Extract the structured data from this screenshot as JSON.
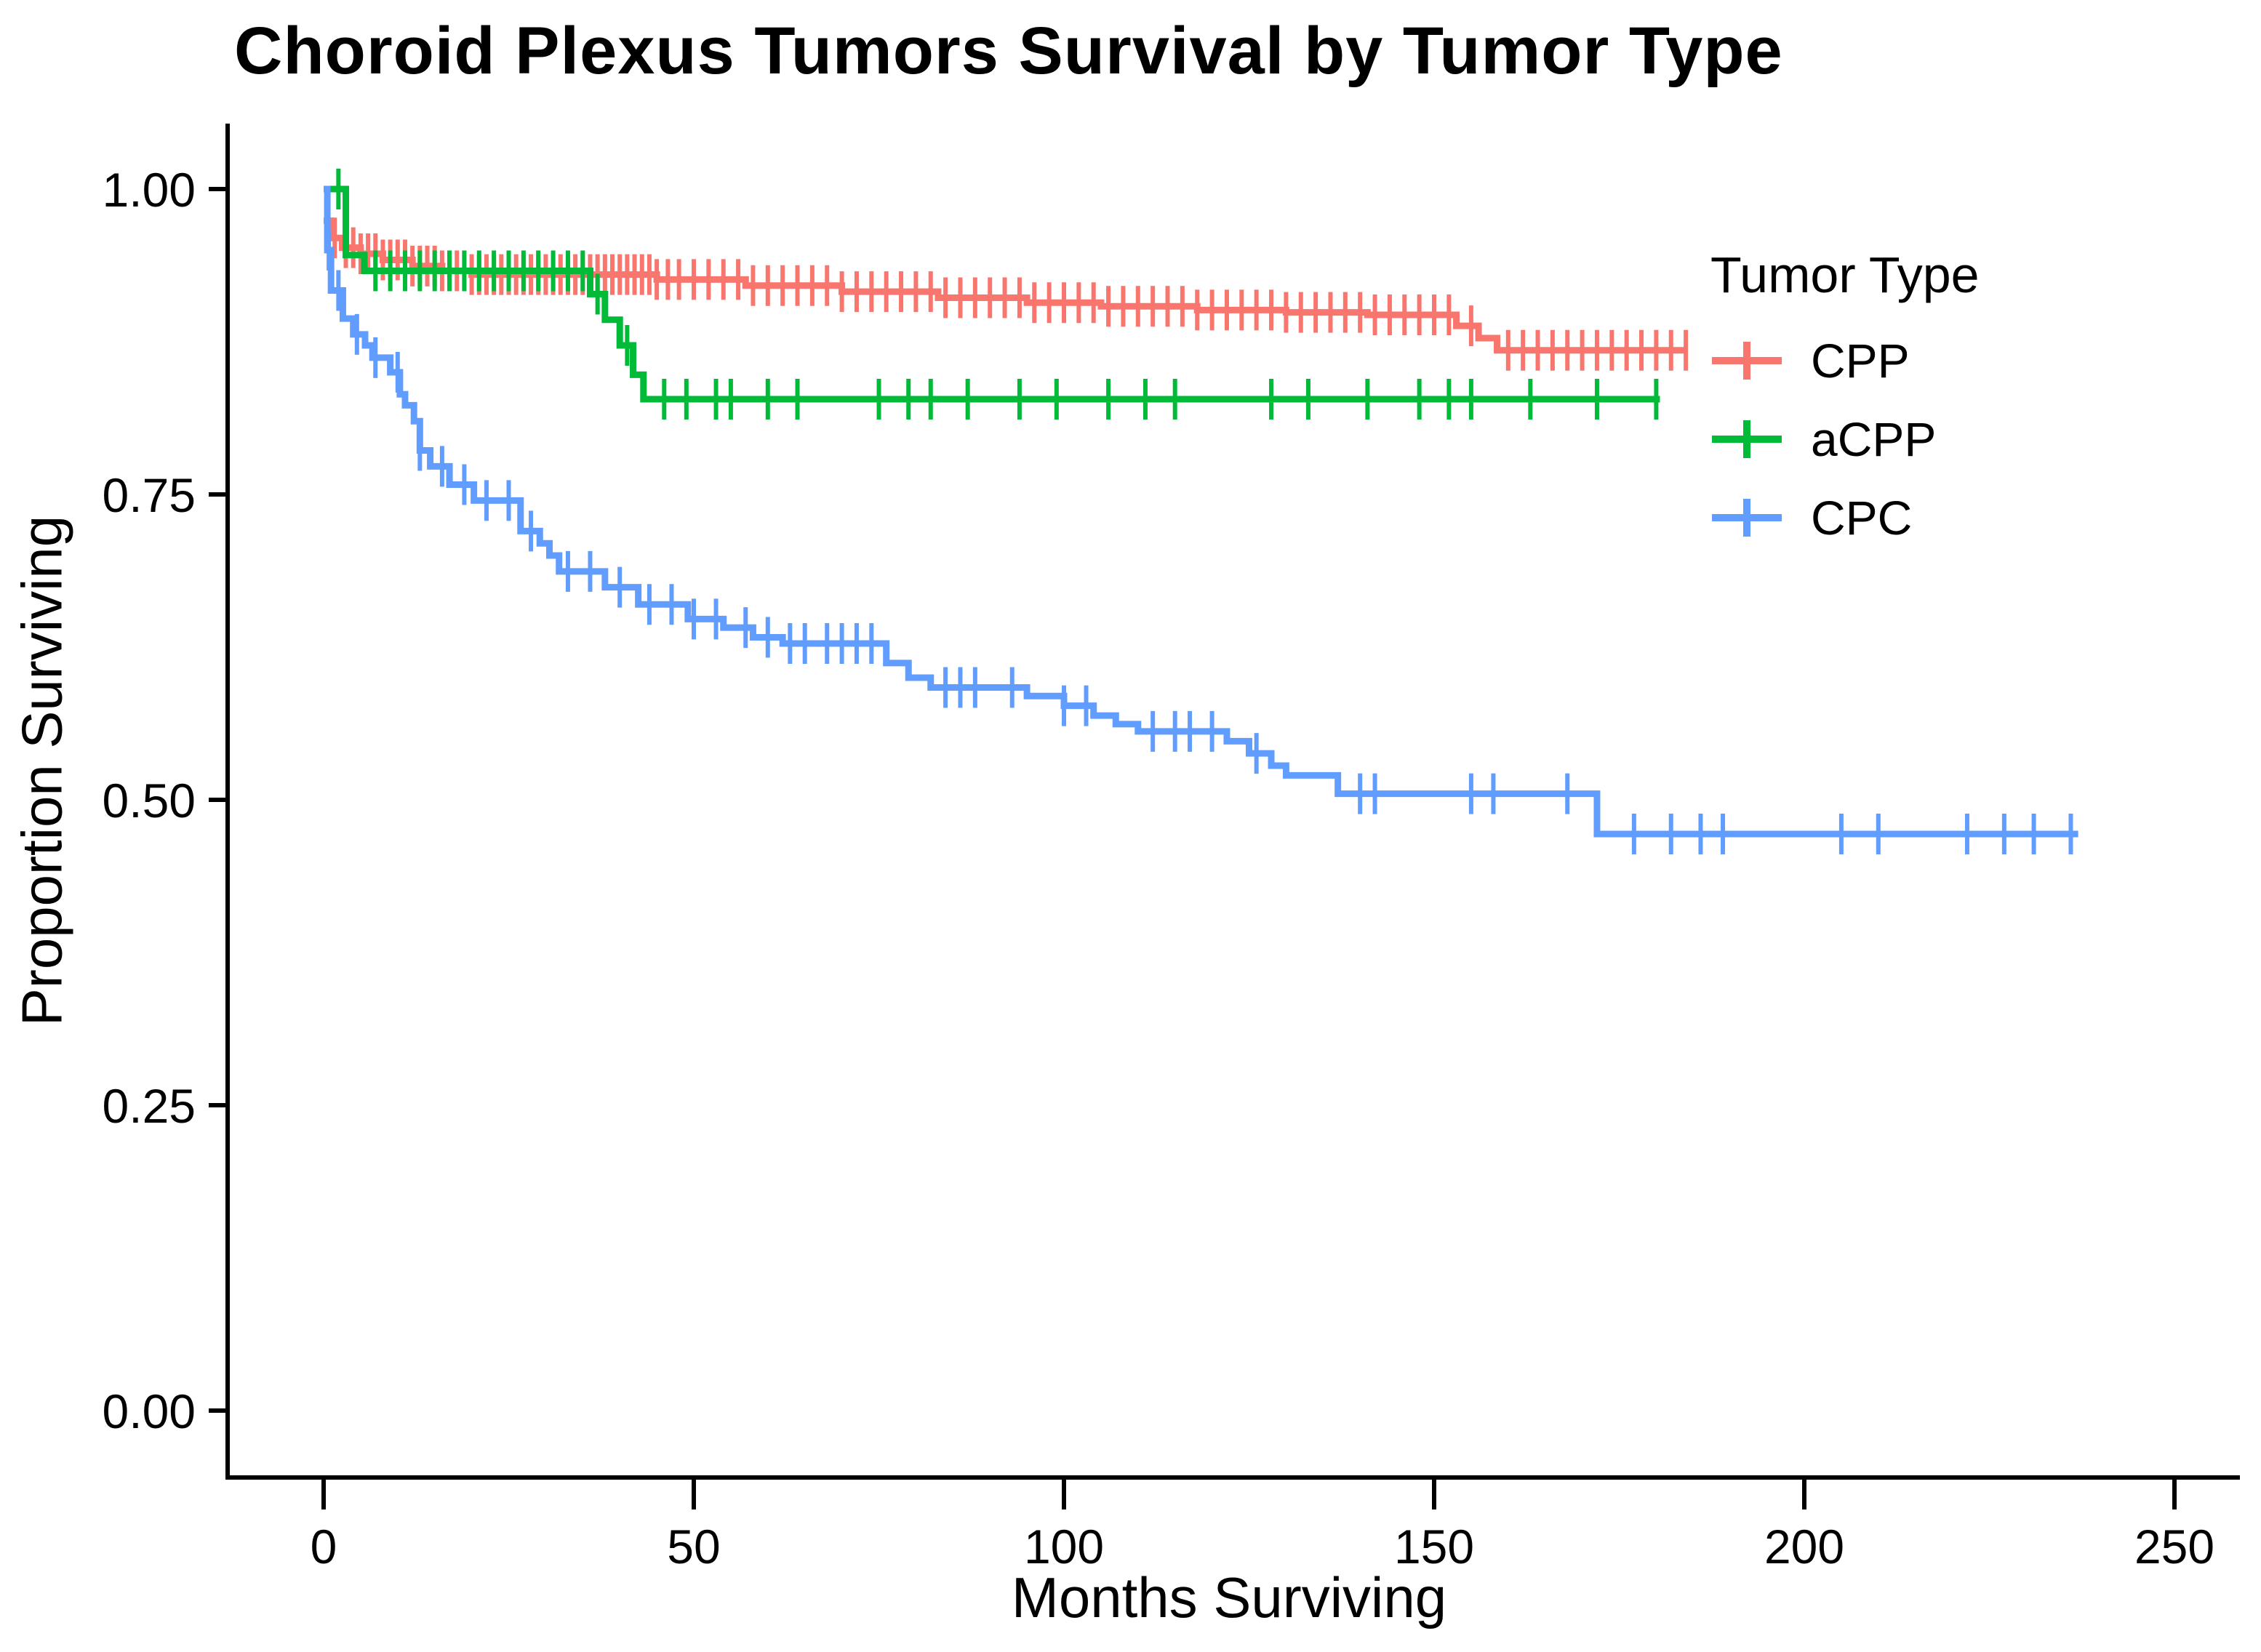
{
  "chart_data": {
    "type": "line",
    "subtype": "kaplan-meier-step-curves",
    "title": "Choroid Plexus Tumors Survival by Tumor Type",
    "xlabel": "Months Surviving",
    "ylabel": "Proportion Surviving",
    "legend_title": "Tumor Type",
    "legend_position": "right",
    "grid": false,
    "background_color": "#ffffff",
    "axis_color": "#000000",
    "xlim": [
      0,
      250
    ],
    "ylim": [
      0.0,
      1.0
    ],
    "x_ticks": [
      {
        "value": 0,
        "label": "0"
      },
      {
        "value": 50,
        "label": "50"
      },
      {
        "value": 100,
        "label": "100"
      },
      {
        "value": 150,
        "label": "150"
      },
      {
        "value": 200,
        "label": "200"
      },
      {
        "value": 250,
        "label": "250"
      }
    ],
    "y_ticks": [
      {
        "value": 0.0,
        "label": "0.00"
      },
      {
        "value": 0.25,
        "label": "0.25"
      },
      {
        "value": 0.5,
        "label": "0.50"
      },
      {
        "value": 0.75,
        "label": "0.75"
      },
      {
        "value": 1.0,
        "label": "1.00"
      }
    ],
    "series": [
      {
        "name": "CPP",
        "color": "#F8766D",
        "end_time": 184,
        "steps": [
          [
            0,
            0.974
          ],
          [
            1,
            0.96
          ],
          [
            2.5,
            0.952
          ],
          [
            5,
            0.947
          ],
          [
            8,
            0.942
          ],
          [
            12,
            0.937
          ],
          [
            16,
            0.933
          ],
          [
            20,
            0.93
          ],
          [
            45,
            0.926
          ],
          [
            57,
            0.921
          ],
          [
            70,
            0.916
          ],
          [
            83,
            0.911
          ],
          [
            95,
            0.907
          ],
          [
            105,
            0.904
          ],
          [
            118,
            0.901
          ],
          [
            130,
            0.899
          ],
          [
            141,
            0.897
          ],
          [
            153,
            0.888
          ],
          [
            156,
            0.878
          ],
          [
            158.5,
            0.868
          ]
        ],
        "censor_times": [
          1.5,
          3,
          4,
          5,
          6,
          7,
          8,
          9,
          10,
          11,
          12,
          13,
          14,
          15,
          16,
          17,
          18,
          19,
          20,
          21,
          22,
          23,
          24,
          25,
          26,
          27,
          28,
          29,
          30,
          31,
          32,
          33,
          34,
          35,
          36,
          37,
          38,
          39,
          40,
          41,
          42,
          43,
          44,
          45,
          46.5,
          48,
          50,
          52,
          54,
          56,
          58,
          60,
          62,
          64,
          66,
          68,
          70,
          72,
          74,
          76,
          78,
          80,
          82,
          84,
          86,
          88,
          90,
          92,
          94,
          96,
          98,
          100,
          102,
          104,
          106,
          108,
          110,
          112,
          114,
          116,
          118,
          120,
          122,
          124,
          126,
          128,
          130,
          132,
          134,
          136,
          138,
          140,
          142,
          144,
          146,
          148,
          150,
          152,
          155,
          160,
          162,
          164,
          166,
          168,
          170,
          172,
          174,
          176,
          178,
          180,
          182,
          184
        ]
      },
      {
        "name": "aCPP",
        "color": "#00BA38",
        "end_time": 180.5,
        "steps": [
          [
            0,
            1.0
          ],
          [
            3,
            0.946
          ],
          [
            5.5,
            0.933
          ],
          [
            36,
            0.914
          ],
          [
            38,
            0.893
          ],
          [
            40,
            0.872
          ],
          [
            41.8,
            0.848
          ],
          [
            43.2,
            0.828
          ]
        ],
        "censor_times": [
          2,
          7,
          9,
          11,
          13,
          15,
          17,
          19,
          21,
          23,
          25,
          27,
          29,
          31,
          33,
          35,
          37,
          41,
          46,
          49,
          53,
          55,
          60,
          64,
          75,
          79,
          82,
          87,
          94,
          99,
          106,
          111,
          115,
          128,
          133,
          141,
          148,
          152,
          155,
          163,
          172,
          180
        ]
      },
      {
        "name": "CPC",
        "color": "#619CFF",
        "end_time": 237,
        "steps": [
          [
            0,
            1.0
          ],
          [
            0.5,
            0.95
          ],
          [
            1,
            0.917
          ],
          [
            2.6,
            0.894
          ],
          [
            4,
            0.881
          ],
          [
            5.6,
            0.872
          ],
          [
            6.6,
            0.862
          ],
          [
            9,
            0.85
          ],
          [
            10.3,
            0.832
          ],
          [
            11,
            0.823
          ],
          [
            12.2,
            0.81
          ],
          [
            13,
            0.786
          ],
          [
            14.4,
            0.773
          ],
          [
            17,
            0.758
          ],
          [
            20.3,
            0.745
          ],
          [
            26.6,
            0.72
          ],
          [
            29.2,
            0.71
          ],
          [
            30.5,
            0.7
          ],
          [
            31.8,
            0.687
          ],
          [
            38,
            0.674
          ],
          [
            42.5,
            0.66
          ],
          [
            49.2,
            0.648
          ],
          [
            54,
            0.641
          ],
          [
            58,
            0.633
          ],
          [
            62,
            0.628
          ],
          [
            76,
            0.612
          ],
          [
            79,
            0.6
          ],
          [
            82,
            0.592
          ],
          [
            95,
            0.585
          ],
          [
            100,
            0.577
          ],
          [
            104,
            0.569
          ],
          [
            107,
            0.562
          ],
          [
            110,
            0.556
          ],
          [
            122,
            0.548
          ],
          [
            125,
            0.538
          ],
          [
            128,
            0.528
          ],
          [
            130,
            0.52
          ],
          [
            137,
            0.505
          ],
          [
            172,
            0.472
          ]
        ],
        "censor_times": [
          0.7,
          2,
          4.5,
          7,
          10,
          13,
          16,
          19,
          22,
          25,
          28,
          33,
          36,
          40,
          44,
          47,
          50,
          53,
          57,
          60,
          63,
          65,
          68,
          70,
          72,
          74,
          84,
          86,
          88,
          93,
          100,
          103,
          112,
          115,
          117,
          120,
          126,
          140,
          142,
          155,
          158,
          168,
          177,
          182,
          186,
          189,
          205,
          210,
          222,
          227,
          231,
          236
        ]
      }
    ]
  }
}
